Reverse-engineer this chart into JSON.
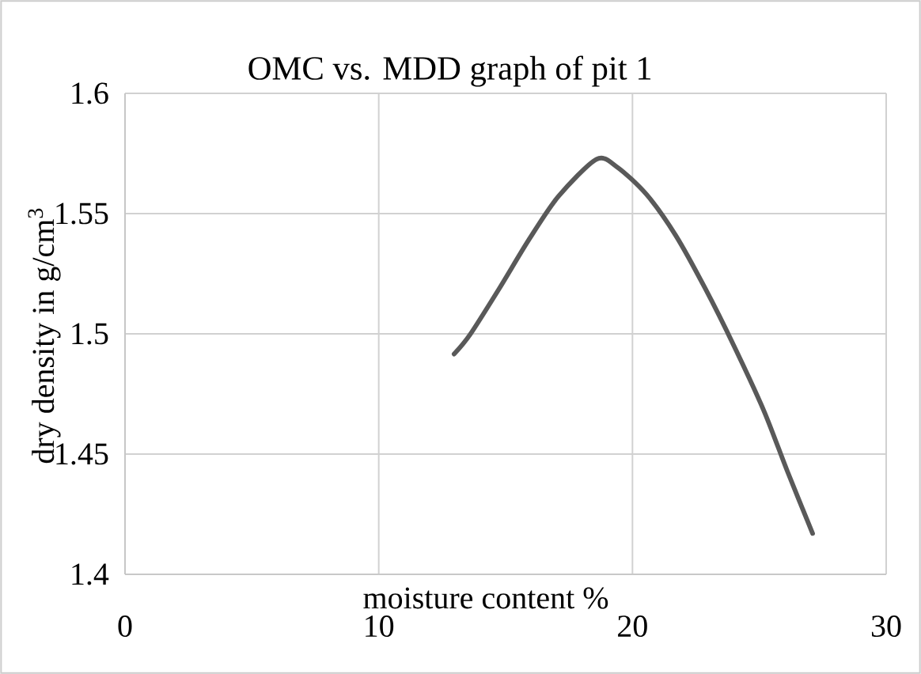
{
  "chart_data": {
    "type": "line",
    "title": "OMC vs. MDD graph of pit 1",
    "xlabel": "moisture content %",
    "ylabel": "dry density in g/cm$^{3}$",
    "x": [
      12.97,
      13.6,
      14.76,
      15.91,
      17.07,
      18.58,
      19.39,
      20.55,
      21.7,
      22.86,
      24.0,
      25.18,
      26.1,
      27.1
    ],
    "values": [
      1.4916,
      1.4997,
      1.519,
      1.539,
      1.557,
      1.5726,
      1.5694,
      1.558,
      1.541,
      1.519,
      1.495,
      1.468,
      1.443,
      1.417
    ],
    "color": "#595959",
    "xlim": [
      0,
      30
    ],
    "xticks": [
      0,
      10,
      20,
      30
    ],
    "ylim": [
      1.4,
      1.6
    ],
    "yticks": [
      1.4,
      1.45,
      1.5,
      1.55,
      1.6
    ],
    "grid": true
  }
}
